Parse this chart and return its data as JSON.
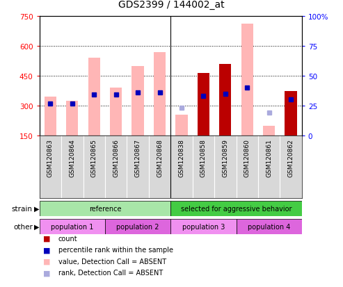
{
  "title": "GDS2399 / 144002_at",
  "samples": [
    "GSM120863",
    "GSM120864",
    "GSM120865",
    "GSM120866",
    "GSM120867",
    "GSM120868",
    "GSM120838",
    "GSM120858",
    "GSM120859",
    "GSM120860",
    "GSM120861",
    "GSM120862"
  ],
  "ylim_left": [
    150,
    750
  ],
  "ylim_right": [
    0,
    100
  ],
  "yticks_left": [
    150,
    300,
    450,
    600,
    750
  ],
  "yticks_right": [
    0,
    25,
    50,
    75,
    100
  ],
  "pink_bar_values": [
    345,
    325,
    540,
    390,
    500,
    570,
    255,
    465,
    510,
    710,
    200,
    375
  ],
  "red_bar_values": [
    null,
    null,
    null,
    null,
    null,
    null,
    null,
    465,
    510,
    null,
    null,
    375
  ],
  "blue_square_y": [
    310,
    310,
    355,
    355,
    365,
    365,
    null,
    350,
    360,
    390,
    null,
    330
  ],
  "light_blue_square_y": [
    null,
    null,
    null,
    null,
    null,
    null,
    290,
    null,
    null,
    null,
    265,
    null
  ],
  "absent_detection": [
    true,
    true,
    true,
    true,
    true,
    true,
    true,
    false,
    false,
    true,
    true,
    false
  ],
  "strain_groups": [
    {
      "label": "reference",
      "start": 0,
      "end": 6,
      "color": "#a8e6a8"
    },
    {
      "label": "selected for aggressive behavior",
      "start": 6,
      "end": 12,
      "color": "#44cc44"
    }
  ],
  "other_groups": [
    {
      "label": "population 1",
      "start": 0,
      "end": 3,
      "color": "#f090f0"
    },
    {
      "label": "population 2",
      "start": 3,
      "end": 6,
      "color": "#dd66dd"
    },
    {
      "label": "population 3",
      "start": 6,
      "end": 9,
      "color": "#f090f0"
    },
    {
      "label": "population 4",
      "start": 9,
      "end": 12,
      "color": "#dd66dd"
    }
  ],
  "pink_color": "#ffb6b6",
  "red_color": "#bb0000",
  "blue_color": "#0000bb",
  "light_blue_color": "#aaaadd",
  "bar_width": 0.55,
  "legend_items": [
    {
      "label": "count",
      "color": "#bb0000"
    },
    {
      "label": "percentile rank within the sample",
      "color": "#0000bb"
    },
    {
      "label": "value, Detection Call = ABSENT",
      "color": "#ffb6b6"
    },
    {
      "label": "rank, Detection Call = ABSENT",
      "color": "#aaaadd"
    }
  ]
}
